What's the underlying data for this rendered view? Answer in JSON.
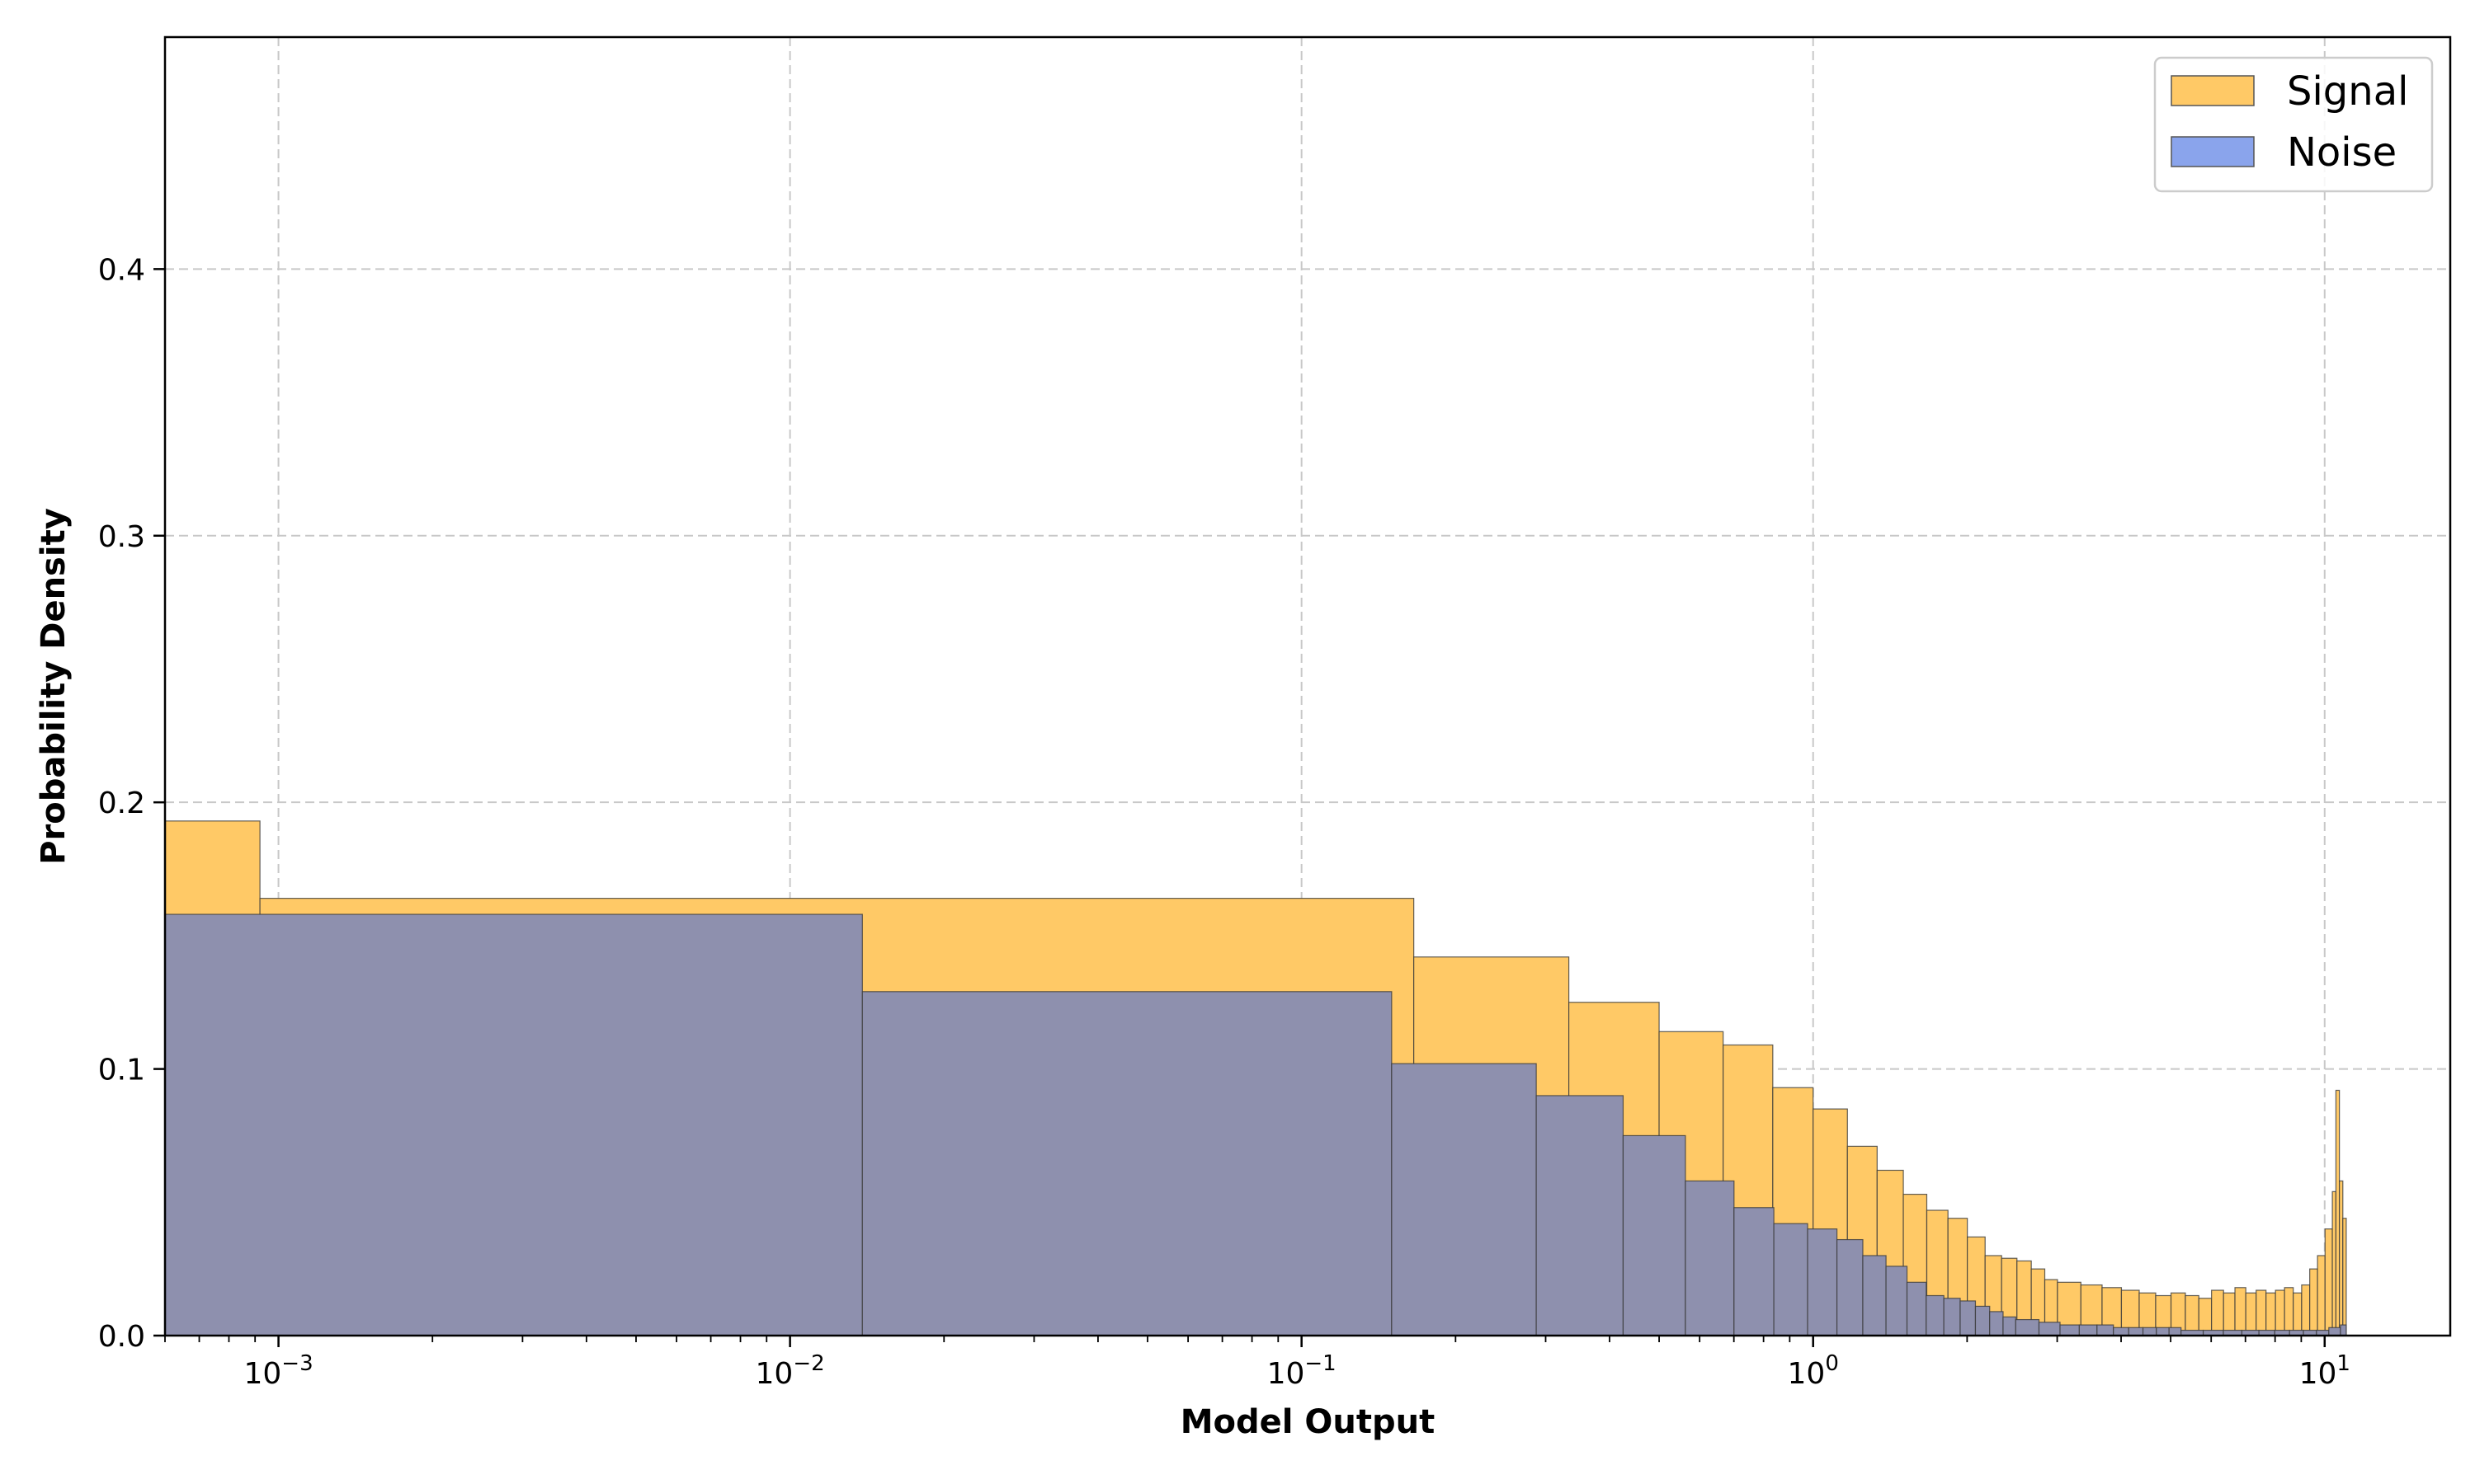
{
  "chart_data": {
    "type": "bar",
    "title": "",
    "xlabel": "Model Output",
    "ylabel": "Probability Density",
    "xscale": "log",
    "xlim": [
      0.0006,
      17.6
    ],
    "ylim": [
      0,
      0.487
    ],
    "x_ticks": [
      {
        "base": "10",
        "exp": "−3",
        "value": 0.001
      },
      {
        "base": "10",
        "exp": "−2",
        "value": 0.01
      },
      {
        "base": "10",
        "exp": "−1",
        "value": 0.1
      },
      {
        "base": "10",
        "exp": "0",
        "value": 1
      },
      {
        "base": "10",
        "exp": "1",
        "value": 10
      }
    ],
    "y_ticks": [
      {
        "label": "0.0",
        "value": 0
      },
      {
        "label": "0.1",
        "value": 0.1
      },
      {
        "label": "0.2",
        "value": 0.2
      },
      {
        "label": "0.3",
        "value": 0.3
      },
      {
        "label": "0.4",
        "value": 0.4
      }
    ],
    "grid": true,
    "legend_position": "top-right",
    "series": [
      {
        "name": "Signal",
        "color": "#FFC966",
        "edges": [
          0.0006,
          0.00092,
          0.1657,
          0.333,
          0.5,
          0.667,
          0.834,
          1.0,
          1.167,
          1.334,
          1.501,
          1.668,
          1.835,
          2.002,
          2.169,
          2.336,
          2.503,
          2.67,
          2.837,
          3.004,
          3.338,
          3.672,
          4.006,
          4.34,
          4.674,
          5.008,
          5.342,
          5.676,
          6.01,
          6.344,
          6.678,
          7.012,
          7.346,
          7.68,
          8.014,
          8.348,
          8.682,
          9.016,
          9.35,
          9.684,
          10.018,
          10.352,
          10.52,
          10.686,
          10.852,
          11.02
        ],
        "values": [
          0.193,
          0.164,
          0.142,
          0.125,
          0.114,
          0.109,
          0.093,
          0.085,
          0.071,
          0.062,
          0.053,
          0.047,
          0.044,
          0.037,
          0.03,
          0.029,
          0.028,
          0.025,
          0.021,
          0.02,
          0.019,
          0.018,
          0.017,
          0.016,
          0.015,
          0.016,
          0.015,
          0.014,
          0.017,
          0.016,
          0.018,
          0.016,
          0.017,
          0.016,
          0.017,
          0.018,
          0.016,
          0.019,
          0.025,
          0.03,
          0.04,
          0.054,
          0.092,
          0.058,
          0.044
        ]
      },
      {
        "name": "Noise",
        "color": "#8AA4EC",
        "edges": [
          0.0006,
          0.01385,
          0.15,
          0.2876,
          0.4252,
          0.5628,
          0.7004,
          0.838,
          0.9756,
          1.1132,
          1.2508,
          1.3884,
          1.526,
          1.6636,
          1.8012,
          1.9388,
          2.0764,
          2.214,
          2.3516,
          2.4892,
          2.764,
          3.039,
          3.314,
          3.589,
          3.864,
          4.139,
          4.414,
          4.689,
          4.964,
          5.239,
          5.789,
          6.339,
          6.889,
          7.439,
          7.989,
          8.539,
          9.089,
          9.639,
          10.189,
          10.739,
          11.02
        ],
        "values": [
          0.158,
          0.129,
          0.102,
          0.09,
          0.075,
          0.058,
          0.048,
          0.042,
          0.04,
          0.036,
          0.03,
          0.026,
          0.02,
          0.015,
          0.014,
          0.013,
          0.011,
          0.009,
          0.007,
          0.006,
          0.005,
          0.004,
          0.004,
          0.004,
          0.003,
          0.003,
          0.003,
          0.003,
          0.003,
          0.002,
          0.002,
          0.002,
          0.002,
          0.002,
          0.002,
          0.002,
          0.002,
          0.002,
          0.003,
          0.004
        ]
      }
    ]
  }
}
